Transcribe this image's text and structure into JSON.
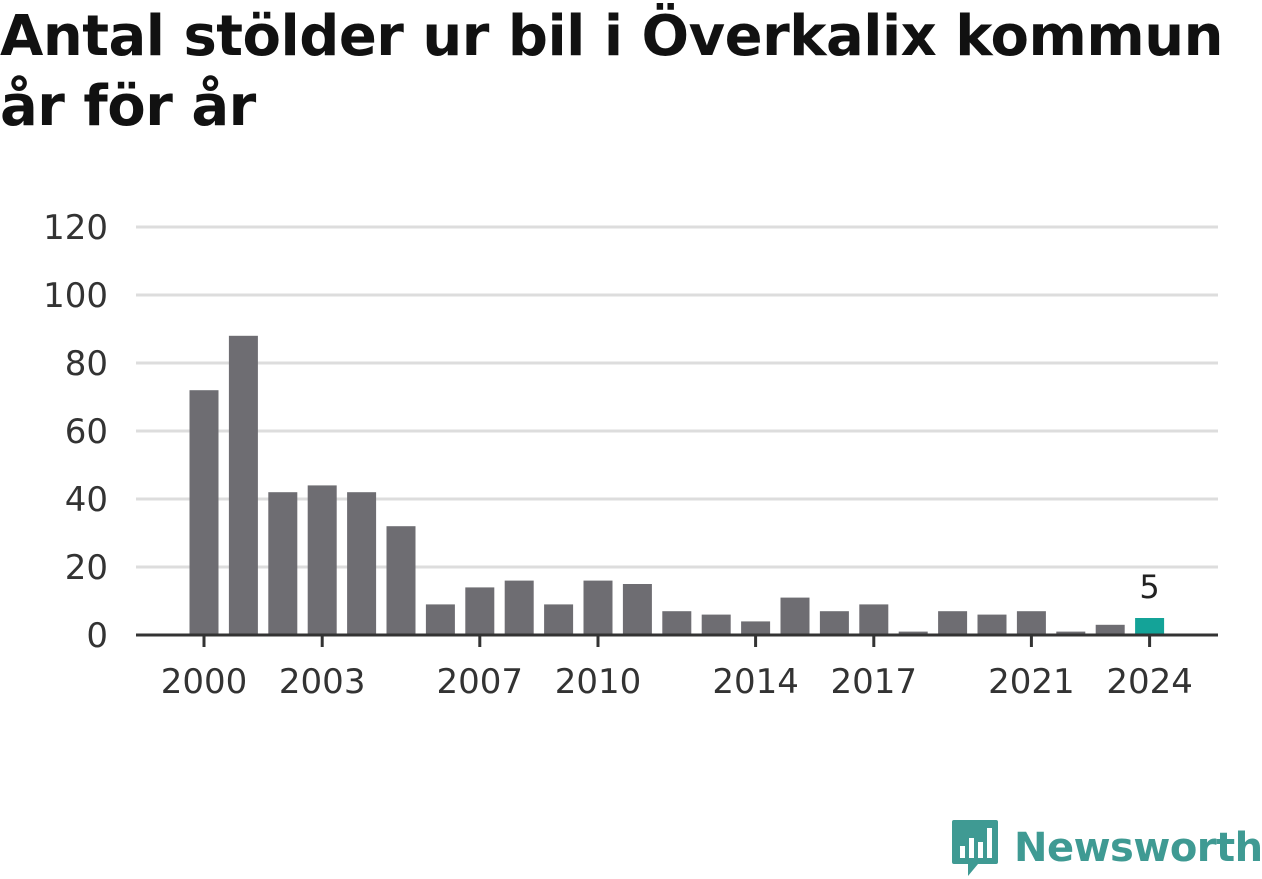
{
  "title": "Antal stölder ur bil i Överkalix kommun år för år",
  "brand": {
    "name": "Newsworthy",
    "icon": "newsworthy-logo-icon",
    "color": "#3f9a93"
  },
  "colors": {
    "bar": "#6e6d72",
    "highlight": "#14a398",
    "grid": "#dddddd",
    "axis": "#333333"
  },
  "chart_data": {
    "type": "bar",
    "title": "Antal stölder ur bil i Överkalix kommun år för år",
    "categories": [
      "2000",
      "2001",
      "2002",
      "2003",
      "2004",
      "2005",
      "2006",
      "2007",
      "2008",
      "2009",
      "2010",
      "2011",
      "2012",
      "2013",
      "2014",
      "2015",
      "2016",
      "2017",
      "2018",
      "2019",
      "2020",
      "2021",
      "2022",
      "2023",
      "2024"
    ],
    "values": [
      72,
      88,
      42,
      44,
      42,
      32,
      9,
      14,
      16,
      9,
      16,
      15,
      7,
      6,
      4,
      11,
      7,
      9,
      1,
      7,
      6,
      7,
      1,
      3,
      5
    ],
    "x_tick_labels": [
      "2000",
      "2003",
      "2007",
      "2010",
      "2014",
      "2017",
      "2021",
      "2024"
    ],
    "y_ticks": [
      0,
      20,
      40,
      60,
      80,
      100,
      120
    ],
    "ylim": [
      0,
      120
    ],
    "highlight_index": 24,
    "data_labels": [
      {
        "index": 24,
        "text": "5"
      }
    ],
    "grid": true,
    "legend": "none"
  }
}
